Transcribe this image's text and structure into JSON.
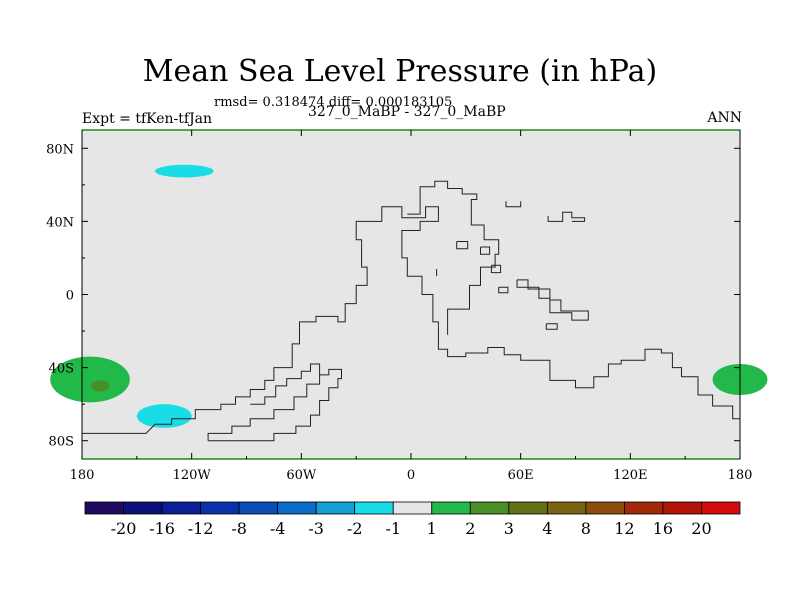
{
  "title": "Mean Sea Level Pressure (in hPa)",
  "stats_line": "rmsd= 0.318474 diff= 0.000183105",
  "left_label": "Expt = tfKen-tfJan",
  "center_label": "327_0_MaBP - 327_0_MaBP",
  "right_label": "ANN",
  "chart_data": {
    "type": "heatmap",
    "map_projection": "cylindrical-equidistant",
    "xlim": [
      -180,
      180
    ],
    "ylim": [
      -90,
      90
    ],
    "x_ticks": [
      {
        "value": -180,
        "label": "180"
      },
      {
        "value": -120,
        "label": "120W"
      },
      {
        "value": -60,
        "label": "60W"
      },
      {
        "value": 0,
        "label": "0"
      },
      {
        "value": 60,
        "label": "60E"
      },
      {
        "value": 120,
        "label": "120E"
      },
      {
        "value": 180,
        "label": "180"
      }
    ],
    "y_ticks": [
      {
        "value": 80,
        "label": "80N"
      },
      {
        "value": 40,
        "label": "40N"
      },
      {
        "value": 0,
        "label": "0"
      },
      {
        "value": -40,
        "label": "40S"
      },
      {
        "value": -80,
        "label": "80S"
      }
    ],
    "background_color": "#e6e6e6",
    "colorbar": {
      "boundaries": [
        "-20",
        "-16",
        "-12",
        "-8",
        "-4",
        "-3",
        "-2",
        "-1",
        "1",
        "2",
        "3",
        "4",
        "8",
        "12",
        "16",
        "20"
      ],
      "colors": [
        "#1e0a5e",
        "#0a0f7a",
        "#0a1e96",
        "#0a32a8",
        "#0a4cb4",
        "#0a6ec8",
        "#14a0d2",
        "#18dde6",
        "#e6e6e6",
        "#22b84a",
        "#4a8e28",
        "#627018",
        "#7a6414",
        "#8c4c0c",
        "#a02a08",
        "#b41408",
        "#d20a0a"
      ]
    },
    "anomalies": [
      {
        "name": "anomaly-arctic-negative",
        "value_range": [
          -2,
          -1
        ],
        "color": "#18dde6",
        "lon": [
          -140,
          -108
        ],
        "lat": [
          64,
          71
        ]
      },
      {
        "name": "anomaly-southwest-positive",
        "value_range": [
          1,
          2
        ],
        "color": "#22b84a",
        "lon": [
          -180,
          -143
        ],
        "lat": [
          -59,
          -34
        ]
      },
      {
        "name": "anomaly-southwest-core",
        "value_range": [
          3,
          4
        ],
        "color": "#4a8e28",
        "lon": [
          -175,
          -165
        ],
        "lat": [
          -53,
          -47
        ]
      },
      {
        "name": "anomaly-south-negative",
        "value_range": [
          -2,
          -1
        ],
        "color": "#18dde6",
        "lon": [
          -150,
          -120
        ],
        "lat": [
          -73,
          -60
        ]
      },
      {
        "name": "anomaly-east-positive",
        "value_range": [
          1,
          2
        ],
        "color": "#22b84a",
        "lon": [
          165,
          180
        ],
        "lat": [
          -55,
          -38
        ]
      }
    ],
    "coastline": [
      [
        [
          -180,
          -76
        ],
        [
          -145,
          -76
        ],
        [
          -140,
          -71
        ],
        [
          -131,
          -71
        ],
        [
          -131,
          -68
        ],
        [
          -118,
          -68
        ],
        [
          -118,
          -63
        ],
        [
          -104,
          -63
        ],
        [
          -104,
          -60
        ],
        [
          -96,
          -60
        ],
        [
          -96,
          -56
        ],
        [
          -88,
          -56
        ],
        [
          -88,
          -52
        ],
        [
          -80,
          -52
        ],
        [
          -80,
          -47
        ],
        [
          -75,
          -47
        ],
        [
          -75,
          -40
        ],
        [
          -65,
          -40
        ],
        [
          -65,
          -27
        ],
        [
          -61,
          -27
        ],
        [
          -61,
          -15
        ],
        [
          -52,
          -15
        ],
        [
          -52,
          -12
        ],
        [
          -40,
          -12
        ],
        [
          -40,
          -15
        ],
        [
          -36,
          -15
        ],
        [
          -36,
          -5
        ],
        [
          -30,
          -5
        ],
        [
          -30,
          5
        ],
        [
          -24,
          5
        ],
        [
          -24,
          15
        ],
        [
          -27,
          15
        ],
        [
          -27,
          30
        ],
        [
          -30,
          30
        ],
        [
          -30,
          40
        ],
        [
          -16,
          40
        ],
        [
          -16,
          48
        ],
        [
          -5,
          48
        ],
        [
          -5,
          42
        ],
        [
          8,
          42
        ],
        [
          8,
          48
        ],
        [
          15,
          48
        ],
        [
          15,
          40
        ],
        [
          5,
          40
        ],
        [
          5,
          35
        ],
        [
          -5,
          35
        ],
        [
          -5,
          20
        ],
        [
          -2,
          20
        ],
        [
          -2,
          10
        ],
        [
          6,
          10
        ],
        [
          6,
          0
        ],
        [
          12,
          0
        ],
        [
          12,
          -15
        ],
        [
          15,
          -15
        ],
        [
          15,
          -30
        ],
        [
          20,
          -30
        ],
        [
          20,
          -34
        ],
        [
          30,
          -34
        ],
        [
          30,
          -32
        ],
        [
          42,
          -32
        ],
        [
          42,
          -29
        ],
        [
          51,
          -29
        ],
        [
          51,
          -33
        ],
        [
          60,
          -33
        ],
        [
          60,
          -36
        ],
        [
          76,
          -36
        ],
        [
          76,
          -47
        ],
        [
          90,
          -47
        ],
        [
          90,
          -51
        ],
        [
          100,
          -51
        ],
        [
          100,
          -45
        ],
        [
          108,
          -45
        ],
        [
          108,
          -38
        ],
        [
          115,
          -38
        ],
        [
          115,
          -36
        ],
        [
          128,
          -36
        ],
        [
          128,
          -30
        ],
        [
          137,
          -30
        ],
        [
          137,
          -32
        ],
        [
          143,
          -32
        ],
        [
          143,
          -40
        ],
        [
          148,
          -40
        ],
        [
          148,
          -45
        ],
        [
          157,
          -45
        ],
        [
          157,
          -55
        ],
        [
          165,
          -55
        ],
        [
          165,
          -61
        ],
        [
          176,
          -61
        ],
        [
          176,
          -68
        ],
        [
          180,
          -68
        ]
      ],
      [
        [
          -111,
          -80
        ],
        [
          -111,
          -76
        ],
        [
          -98,
          -76
        ],
        [
          -98,
          -72
        ],
        [
          -88,
          -72
        ],
        [
          -88,
          -68
        ],
        [
          -75,
          -68
        ],
        [
          -75,
          -63
        ],
        [
          -64,
          -63
        ],
        [
          -64,
          -56
        ],
        [
          -57,
          -56
        ],
        [
          -57,
          -49
        ],
        [
          -50,
          -49
        ],
        [
          -50,
          -44
        ],
        [
          -45,
          -44
        ],
        [
          -45,
          -41
        ],
        [
          -38,
          -41
        ],
        [
          -38,
          -46
        ],
        [
          -40,
          -46
        ],
        [
          -40,
          -51
        ],
        [
          -45,
          -51
        ],
        [
          -45,
          -58
        ],
        [
          -50,
          -58
        ],
        [
          -50,
          -66
        ],
        [
          -55,
          -66
        ],
        [
          -55,
          -72
        ],
        [
          -63,
          -72
        ],
        [
          -63,
          -76
        ],
        [
          -75,
          -76
        ],
        [
          -75,
          -80
        ],
        [
          -111,
          -80
        ]
      ],
      [
        [
          -88,
          -60
        ],
        [
          -80,
          -60
        ],
        [
          -80,
          -56
        ],
        [
          -74,
          -56
        ],
        [
          -74,
          -50
        ],
        [
          -68,
          -50
        ],
        [
          -68,
          -46
        ],
        [
          -60,
          -46
        ],
        [
          -60,
          -42
        ],
        [
          -55,
          -42
        ],
        [
          -55,
          -38
        ],
        [
          -50,
          -38
        ],
        [
          -50,
          -44
        ]
      ],
      [
        [
          20,
          -22
        ],
        [
          20,
          -8
        ],
        [
          32,
          -8
        ],
        [
          32,
          5
        ],
        [
          38,
          5
        ],
        [
          38,
          15
        ],
        [
          46,
          15
        ],
        [
          46,
          22
        ],
        [
          48,
          22
        ],
        [
          48,
          30
        ],
        [
          40,
          30
        ],
        [
          40,
          38
        ],
        [
          33,
          38
        ],
        [
          33,
          52
        ],
        [
          36,
          52
        ],
        [
          36,
          55
        ],
        [
          28,
          55
        ],
        [
          28,
          58
        ],
        [
          20,
          58
        ],
        [
          20,
          62
        ],
        [
          13,
          62
        ],
        [
          13,
          59
        ],
        [
          5,
          59
        ],
        [
          5,
          44
        ],
        [
          -2,
          44
        ]
      ],
      [
        [
          14,
          10
        ],
        [
          14,
          14
        ]
      ]
    ],
    "islands": [
      [
        [
          25,
          29
        ],
        [
          25,
          25
        ],
        [
          31,
          25
        ],
        [
          31,
          29
        ],
        [
          25,
          29
        ]
      ],
      [
        [
          38,
          26
        ],
        [
          38,
          22
        ],
        [
          43,
          22
        ],
        [
          43,
          26
        ],
        [
          38,
          26
        ]
      ],
      [
        [
          44,
          16
        ],
        [
          44,
          12
        ],
        [
          49,
          12
        ],
        [
          49,
          16
        ],
        [
          44,
          16
        ]
      ],
      [
        [
          48,
          4
        ],
        [
          48,
          1
        ],
        [
          53,
          1
        ],
        [
          53,
          4
        ],
        [
          48,
          4
        ]
      ],
      [
        [
          58,
          8
        ],
        [
          58,
          4
        ],
        [
          70,
          4
        ],
        [
          70,
          -2
        ],
        [
          76,
          -2
        ],
        [
          76,
          -10
        ],
        [
          88,
          -10
        ],
        [
          88,
          -14
        ],
        [
          97,
          -14
        ],
        [
          97,
          -9
        ],
        [
          82,
          -9
        ],
        [
          82,
          -3
        ],
        [
          76,
          -3
        ],
        [
          76,
          3
        ],
        [
          64,
          3
        ],
        [
          64,
          8
        ],
        [
          58,
          8
        ]
      ],
      [
        [
          74,
          -16
        ],
        [
          74,
          -19
        ],
        [
          80,
          -19
        ],
        [
          80,
          -16
        ],
        [
          74,
          -16
        ]
      ],
      [
        [
          75,
          43
        ],
        [
          75,
          40
        ],
        [
          83,
          40
        ],
        [
          83,
          45
        ],
        [
          88,
          45
        ],
        [
          88,
          42
        ],
        [
          95,
          42
        ],
        [
          95,
          40
        ],
        [
          88,
          40
        ]
      ],
      [
        [
          52,
          51
        ],
        [
          52,
          48
        ],
        [
          60,
          48
        ],
        [
          60,
          51
        ]
      ]
    ]
  }
}
